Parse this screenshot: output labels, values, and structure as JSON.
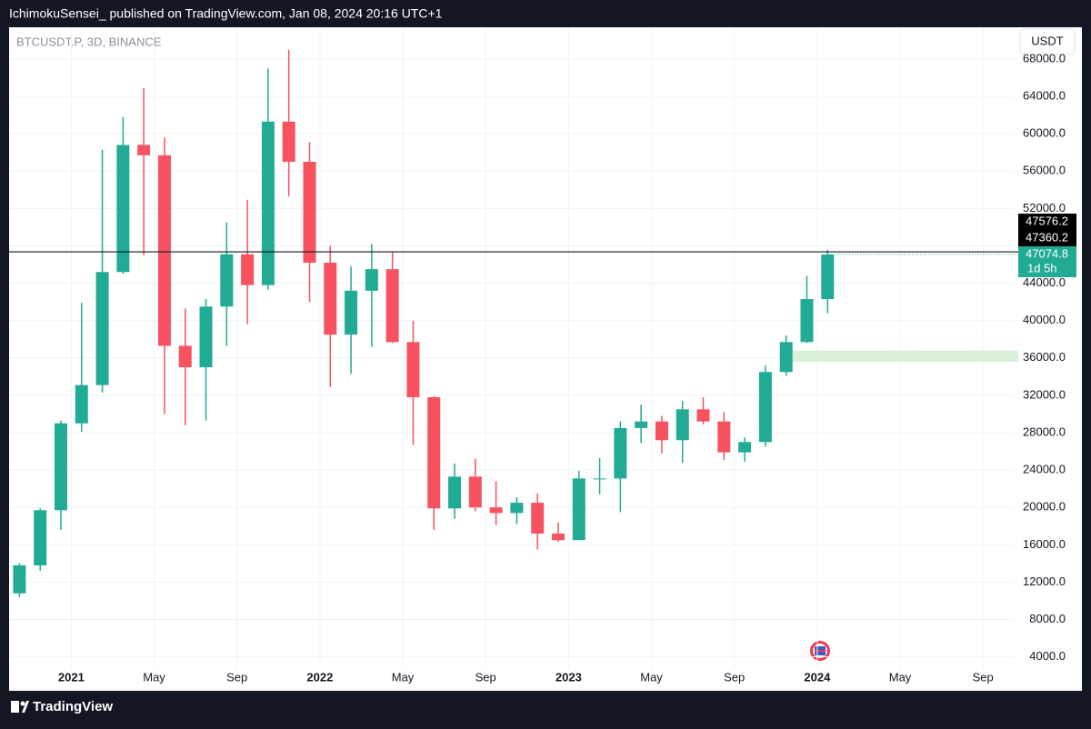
{
  "header": {
    "published": "IchimokuSensei_ published on TradingView.com, Jan 08, 2024 20:16 UTC+1"
  },
  "chart_data": {
    "type": "candlestick",
    "symbol": "BTCUSDT.P, 3D, BINANCE",
    "currency": "USDT",
    "x": [
      "2020-10",
      "2020-11",
      "2020-12",
      "2021-01",
      "2021-02",
      "2021-03",
      "2021-04",
      "2021-05",
      "2021-06",
      "2021-07",
      "2021-08",
      "2021-09",
      "2021-10",
      "2021-11",
      "2021-12",
      "2022-01",
      "2022-02",
      "2022-03",
      "2022-04",
      "2022-05",
      "2022-06",
      "2022-07",
      "2022-08",
      "2022-09",
      "2022-10",
      "2022-11",
      "2022-12",
      "2023-01",
      "2023-02",
      "2023-03",
      "2023-04",
      "2023-05",
      "2023-06",
      "2023-07",
      "2023-08",
      "2023-09",
      "2023-10",
      "2023-11",
      "2023-12",
      "2024-01"
    ],
    "open": [
      10800,
      13800,
      19700,
      29000,
      33100,
      45200,
      58800,
      57700,
      37300,
      35000,
      41500,
      47100,
      43800,
      61300,
      57000,
      46200,
      38500,
      43200,
      45500,
      37700,
      31800,
      19900,
      23300,
      20000,
      19400,
      20500,
      17200,
      16500,
      23100,
      23100,
      28500,
      29200,
      27200,
      30500,
      29200,
      25900,
      27000,
      34500,
      37700,
      42300
    ],
    "high": [
      14000,
      19900,
      29300,
      41900,
      58300,
      61800,
      64900,
      59600,
      41300,
      42300,
      50500,
      52900,
      67000,
      69000,
      59100,
      48000,
      45800,
      48200,
      47400,
      40000,
      31900,
      24700,
      25200,
      22800,
      21100,
      21500,
      18400,
      23900,
      25300,
      29200,
      31000,
      29800,
      31400,
      31800,
      30200,
      27500,
      35200,
      38400,
      44800,
      47576.2
    ],
    "low": [
      10400,
      13200,
      17600,
      28100,
      32300,
      45000,
      47000,
      30000,
      28800,
      29300,
      37300,
      39600,
      43300,
      53300,
      42000,
      32900,
      34300,
      37200,
      37600,
      26700,
      17600,
      18800,
      19600,
      18100,
      18200,
      15500,
      16300,
      16500,
      21400,
      19500,
      26900,
      25800,
      24800,
      28900,
      25100,
      24900,
      26500,
      34100,
      37600,
      40800
    ],
    "close": [
      13800,
      19700,
      29000,
      33100,
      45200,
      58800,
      57700,
      37300,
      35000,
      41500,
      47100,
      43800,
      61300,
      57000,
      46200,
      38500,
      43200,
      45500,
      37700,
      31800,
      19900,
      23300,
      20000,
      19400,
      20500,
      17200,
      16500,
      23100,
      23100,
      28500,
      29200,
      27200,
      30500,
      29200,
      25900,
      27000,
      34500,
      37700,
      42300,
      47074.8
    ],
    "up_color": "#22ab94",
    "down_color": "#f7525f",
    "xlim": [
      "2020-10",
      "2024-10"
    ],
    "ylim": [
      2800,
      71400
    ],
    "xticks": [
      {
        "value": "2021-01",
        "label": "2021"
      },
      {
        "value": "2021-05",
        "label": "May"
      },
      {
        "value": "2021-09",
        "label": "Sep"
      },
      {
        "value": "2022-01",
        "label": "2022"
      },
      {
        "value": "2022-05",
        "label": "May"
      },
      {
        "value": "2022-09",
        "label": "Sep"
      },
      {
        "value": "2023-01",
        "label": "2023"
      },
      {
        "value": "2023-05",
        "label": "May"
      },
      {
        "value": "2023-09",
        "label": "Sep"
      },
      {
        "value": "2024-01",
        "label": "2024"
      },
      {
        "value": "2024-05",
        "label": "May"
      },
      {
        "value": "2024-09",
        "label": "Sep"
      }
    ],
    "yticks": [
      {
        "value": 4000,
        "label": "4000.0"
      },
      {
        "value": 8000,
        "label": "8000.0"
      },
      {
        "value": 12000,
        "label": "12000.0"
      },
      {
        "value": 16000,
        "label": "16000.0"
      },
      {
        "value": 20000,
        "label": "20000.0"
      },
      {
        "value": 24000,
        "label": "24000.0"
      },
      {
        "value": 28000,
        "label": "28000.0"
      },
      {
        "value": 32000,
        "label": "32000.0"
      },
      {
        "value": 36000,
        "label": "36000.0"
      },
      {
        "value": 40000,
        "label": "40000.0"
      },
      {
        "value": 44000,
        "label": "44000.0"
      },
      {
        "value": 48000,
        "label": "48000.0"
      },
      {
        "value": 52000,
        "label": "52000.0"
      },
      {
        "value": 56000,
        "label": "56000.0"
      },
      {
        "value": 60000,
        "label": "60000.0"
      },
      {
        "value": 64000,
        "label": "64000.0"
      },
      {
        "value": 68000,
        "label": "68000.0"
      }
    ],
    "grid": true,
    "line_price": 47360.2,
    "countdown": "1d 5h",
    "zone": [
      35600,
      36800
    ],
    "zone_start": "2023-11",
    "zone_color": "#d9f0d9"
  },
  "footer": {
    "brand": "TradingView"
  }
}
